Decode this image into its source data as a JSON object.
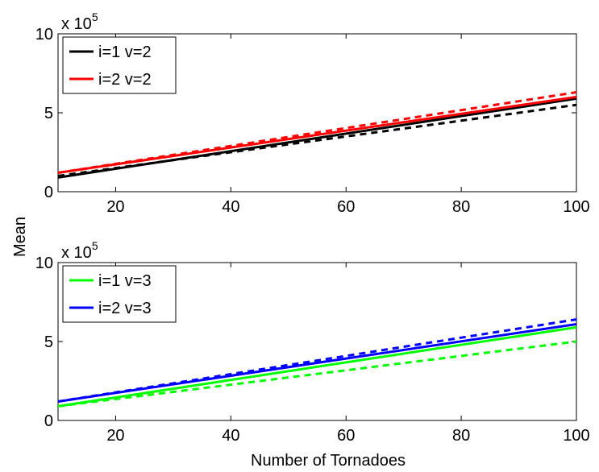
{
  "figure": {
    "xlabel": "Number of Tornadoes",
    "ylabel": "Mean"
  },
  "chart_data": [
    {
      "type": "line",
      "title": "",
      "xlabel": "",
      "ylabel": "",
      "xlim": [
        10,
        100
      ],
      "ylim": [
        0,
        10
      ],
      "y_multiplier_label": {
        "base": "x 10",
        "exp": "5"
      },
      "x_ticks": [
        "20",
        "40",
        "60",
        "80",
        "100"
      ],
      "y_ticks": [
        "0",
        "5",
        "10"
      ],
      "grid": false,
      "legend_position": "top-left",
      "series": [
        {
          "name": "i=1 v=2",
          "color": "#000000",
          "style": "solid",
          "x": [
            10,
            100
          ],
          "y": [
            0.9,
            5.9
          ],
          "legend": true
        },
        {
          "name": "i=2 v=2",
          "color": "#ff0000",
          "style": "solid",
          "x": [
            10,
            100
          ],
          "y": [
            1.2,
            6.0
          ],
          "legend": true
        },
        {
          "color": "#000000",
          "style": "dashed",
          "x": [
            10,
            100
          ],
          "y": [
            1.0,
            5.5
          ],
          "legend": false
        },
        {
          "color": "#ff0000",
          "style": "dashed",
          "x": [
            10,
            100
          ],
          "y": [
            1.2,
            6.3
          ],
          "legend": false
        }
      ]
    },
    {
      "type": "line",
      "title": "",
      "xlabel": "",
      "ylabel": "",
      "xlim": [
        10,
        100
      ],
      "ylim": [
        0,
        10
      ],
      "y_multiplier_label": {
        "base": "x 10",
        "exp": "5"
      },
      "x_ticks": [
        "20",
        "40",
        "60",
        "80",
        "100"
      ],
      "y_ticks": [
        "0",
        "5",
        "10"
      ],
      "grid": false,
      "legend_position": "top-left",
      "series": [
        {
          "name": "i=1 v=3",
          "color": "#00ff00",
          "style": "solid",
          "x": [
            10,
            100
          ],
          "y": [
            0.9,
            5.9
          ],
          "legend": true
        },
        {
          "name": "i=2 v=3",
          "color": "#0000ff",
          "style": "solid",
          "x": [
            10,
            100
          ],
          "y": [
            1.2,
            6.1
          ],
          "legend": true
        },
        {
          "color": "#00ff00",
          "style": "dashed",
          "x": [
            10,
            100
          ],
          "y": [
            0.9,
            5.0
          ],
          "legend": false
        },
        {
          "color": "#0000ff",
          "style": "dashed",
          "x": [
            10,
            100
          ],
          "y": [
            1.2,
            6.4
          ],
          "legend": false
        }
      ]
    }
  ]
}
